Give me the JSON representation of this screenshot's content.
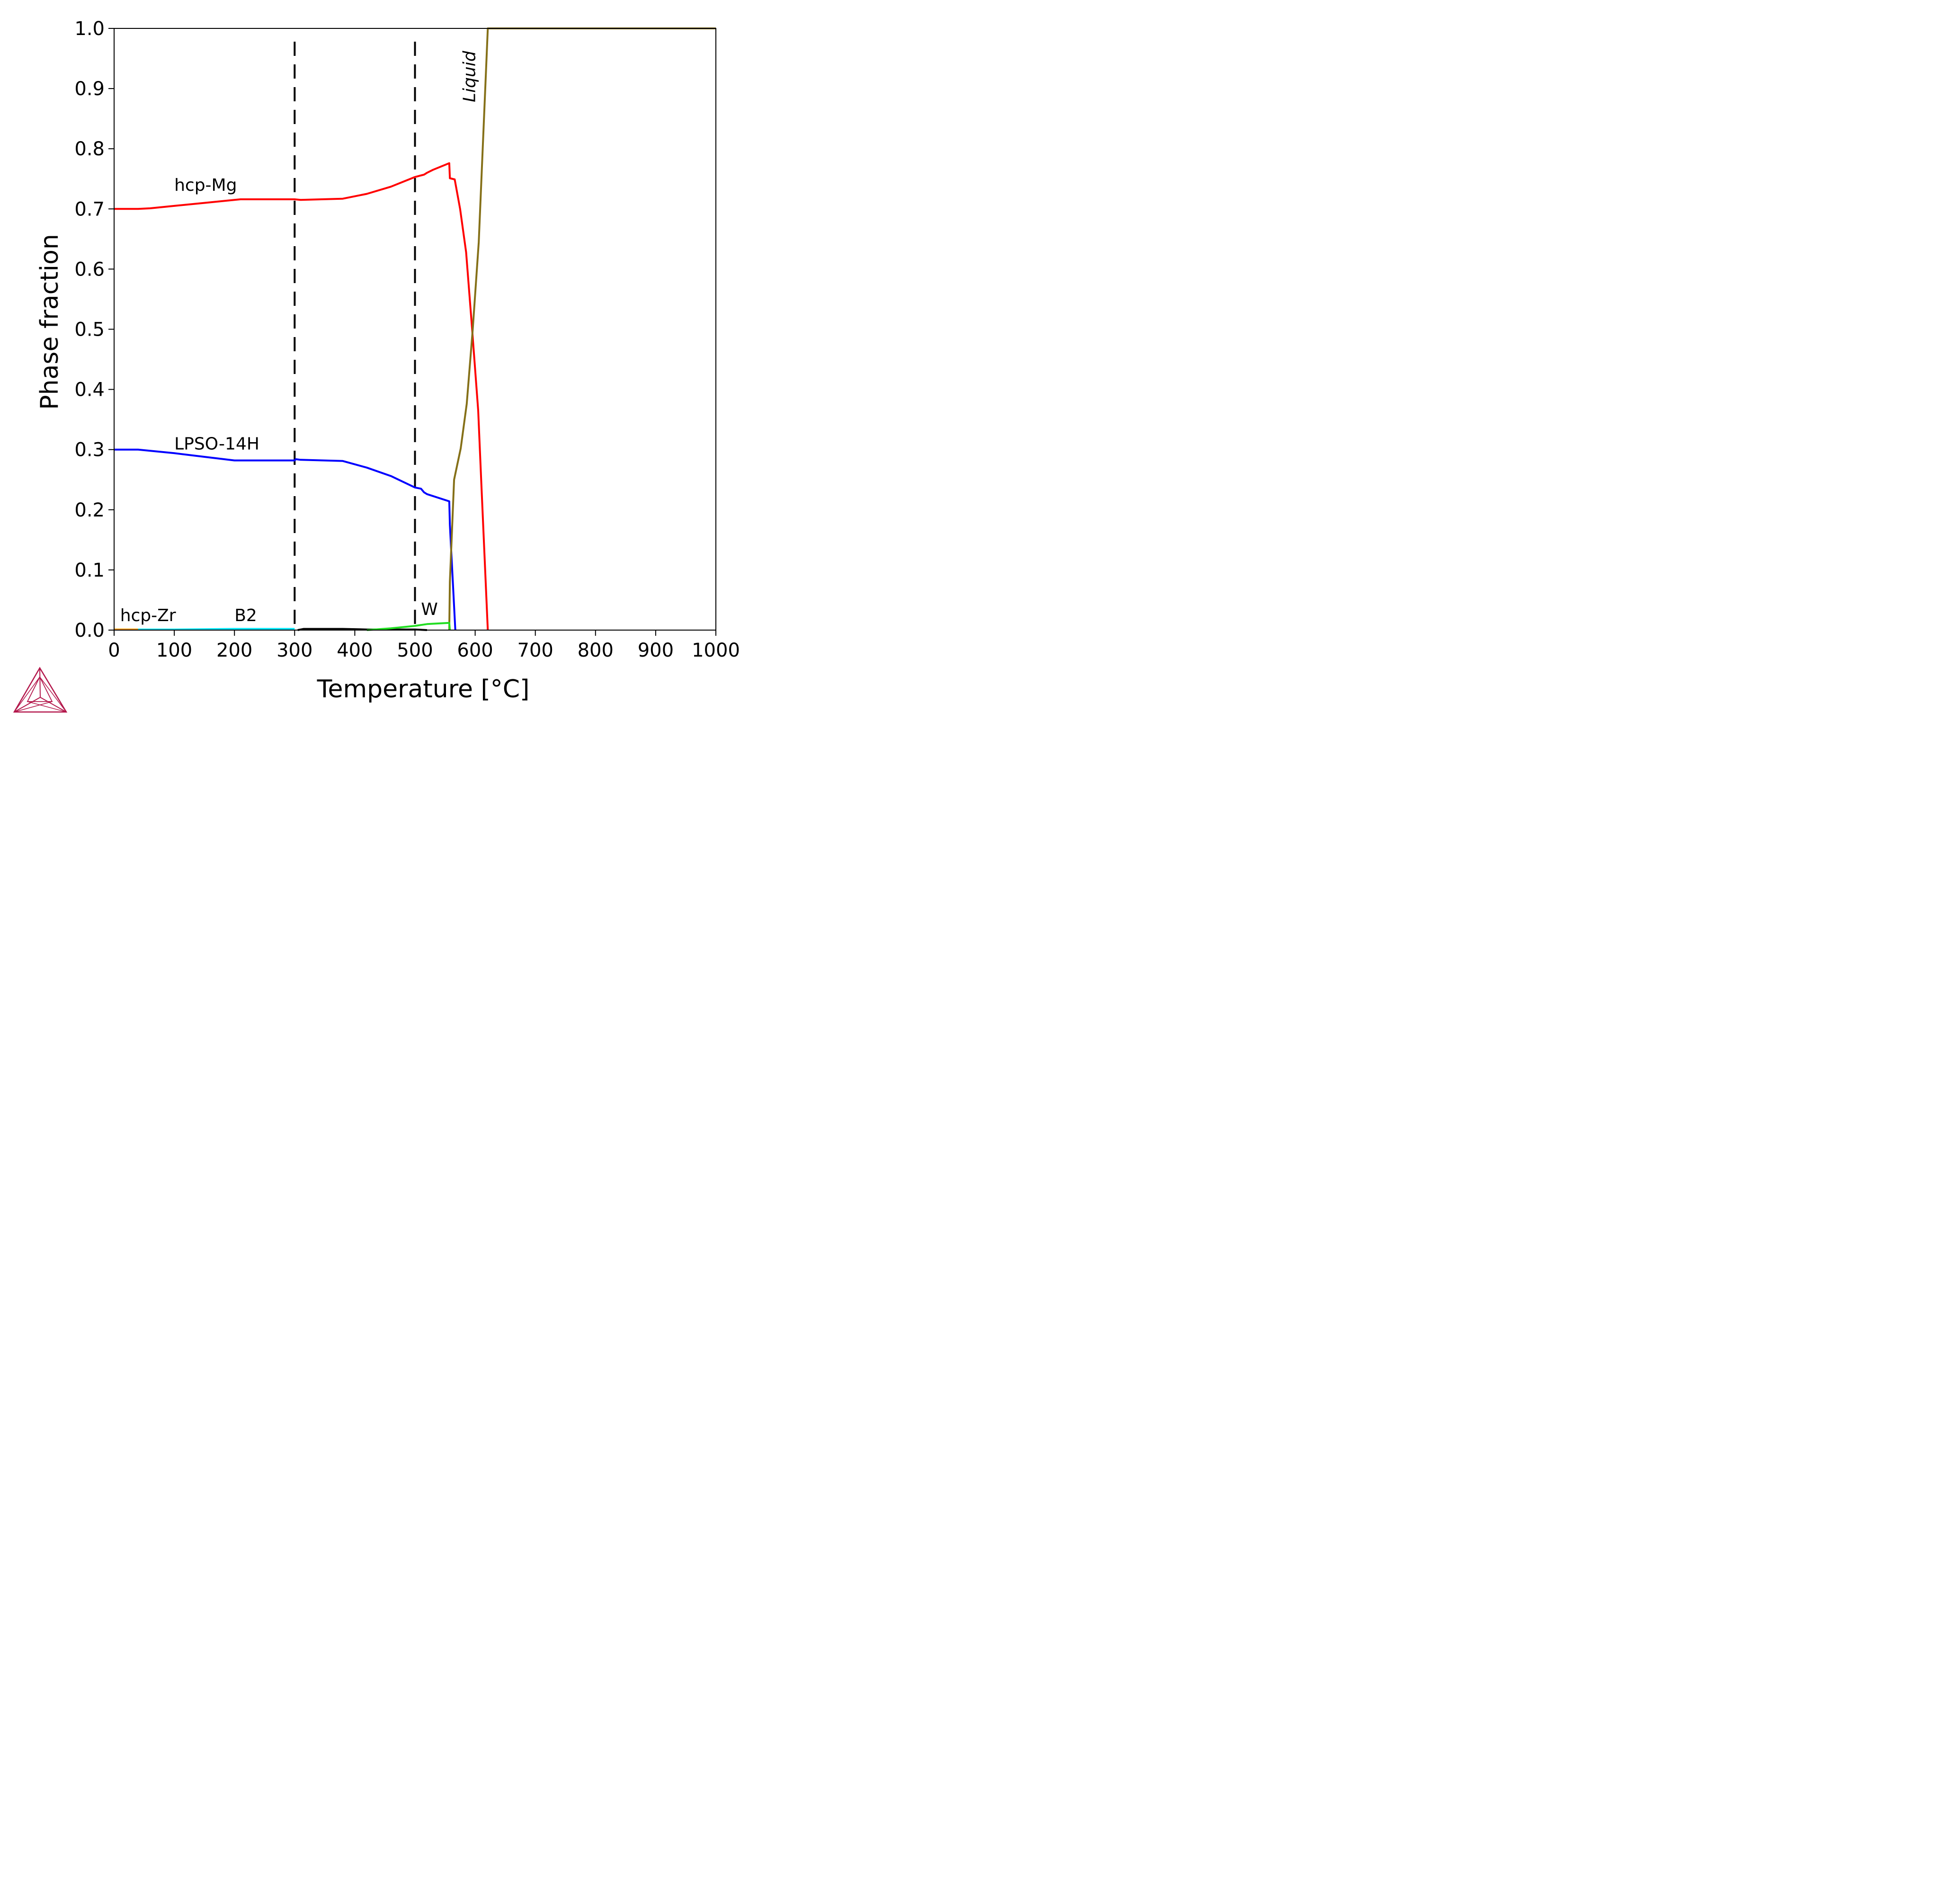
{
  "chart_data": {
    "type": "line",
    "xlabel": "Temperature [°C]",
    "ylabel": "Phase fraction",
    "xlim": [
      0,
      1000
    ],
    "ylim": [
      0,
      1.0
    ],
    "x_ticks": [
      "0",
      "100",
      "200",
      "300",
      "400",
      "500",
      "600",
      "700",
      "800",
      "900",
      "1000"
    ],
    "y_ticks": [
      "0.0",
      "0.1",
      "0.2",
      "0.3",
      "0.4",
      "0.5",
      "0.6",
      "0.7",
      "0.8",
      "0.9",
      "1.0"
    ],
    "grid": false,
    "legend": "none",
    "vertical_markers": [
      {
        "x": 300,
        "style": "dashed",
        "color": "#000000"
      },
      {
        "x": 500,
        "style": "dashed",
        "color": "#000000"
      }
    ],
    "series": [
      {
        "name": "hcp-Mg",
        "color": "#ff0000",
        "x": [
          0,
          40,
          60,
          100,
          150,
          200,
          210,
          300,
          310,
          380,
          420,
          460,
          500,
          515,
          520,
          530,
          557,
          558,
          566,
          575,
          585,
          595,
          605,
          610,
          621
        ],
        "y": [
          0.7,
          0.7,
          0.701,
          0.705,
          0.71,
          0.715,
          0.716,
          0.716,
          0.715,
          0.717,
          0.725,
          0.737,
          0.753,
          0.757,
          0.76,
          0.765,
          0.776,
          0.751,
          0.749,
          0.7,
          0.628,
          0.5,
          0.365,
          0.25,
          0.0
        ]
      },
      {
        "name": "LPSO-14H",
        "color": "#0000ff",
        "x": [
          0,
          40,
          100,
          150,
          200,
          210,
          300,
          302,
          310,
          380,
          420,
          460,
          500,
          510,
          515,
          520,
          557,
          558,
          567
        ],
        "y": [
          0.3,
          0.3,
          0.294,
          0.288,
          0.282,
          0.282,
          0.282,
          0.284,
          0.283,
          0.281,
          0.27,
          0.256,
          0.237,
          0.235,
          0.229,
          0.226,
          0.214,
          0.175,
          0.0
        ]
      },
      {
        "name": "Liquid",
        "color": "#857018",
        "x": [
          557,
          558,
          565,
          576,
          586,
          596,
          606,
          621,
          1000
        ],
        "y": [
          0.0,
          0.08,
          0.25,
          0.302,
          0.376,
          0.5,
          0.645,
          1.0,
          1.0
        ]
      },
      {
        "name": "hcp-Zr",
        "color": "#ff9900",
        "x": [
          0,
          40
        ],
        "y": [
          0.001,
          0.001
        ]
      },
      {
        "name": "B2",
        "color": "#00e6ff",
        "x": [
          40,
          100,
          200,
          300
        ],
        "y": [
          0.001,
          0.001,
          0.002,
          0.002
        ]
      },
      {
        "name": "",
        "color": "#000000",
        "x": [
          305,
          315,
          380,
          420,
          500,
          520
        ],
        "y": [
          0.0,
          0.002,
          0.002,
          0.001,
          0.001,
          0.0
        ]
      },
      {
        "name": "W",
        "color": "#22dd22",
        "x": [
          420,
          460,
          500,
          520,
          557,
          558
        ],
        "y": [
          0.0,
          0.003,
          0.007,
          0.01,
          0.012,
          0.0
        ]
      }
    ],
    "annotations": [
      {
        "text": "hcp-Mg",
        "x": 100,
        "y": 0.73,
        "rotation": 0
      },
      {
        "text": "LPSO-14H",
        "x": 100,
        "y": 0.3,
        "rotation": 0
      },
      {
        "text": "hcp-Zr",
        "x": 10,
        "y": 0.015,
        "rotation": 0
      },
      {
        "text": "B2",
        "x": 200,
        "y": 0.015,
        "rotation": 0
      },
      {
        "text": "W",
        "x": 510,
        "y": 0.025,
        "rotation": 0
      },
      {
        "text": "Liquid",
        "x": 600,
        "y": 0.92,
        "rotation": -90
      }
    ]
  },
  "logo": {
    "name": "thermo-calc-logo",
    "color": "#b3174b"
  }
}
